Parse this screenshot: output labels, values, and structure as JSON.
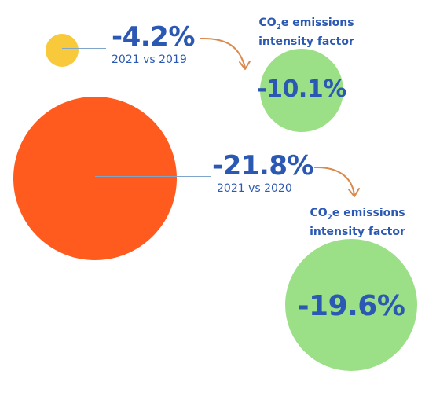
{
  "comparison_2019": {
    "change": "-4.2%",
    "label": "2021 vs 2019",
    "factor_title_prefix": "CO",
    "factor_title_sub": "2",
    "factor_title_line1_suffix": "e emissions",
    "factor_title_line2": "intensity factor",
    "factor_change": "-10.1%"
  },
  "comparison_2020": {
    "change": "-21.8%",
    "label": "2021 vs 2020",
    "factor_title_prefix": "CO",
    "factor_title_sub": "2",
    "factor_title_line1_suffix": "e emissions",
    "factor_title_line2": "intensity factor",
    "factor_change": "-19.6%"
  },
  "colors": {
    "small_circle": "#F8C93A",
    "large_circle": "#FF5B1F",
    "factor_circles": "#9BDF87",
    "text": "#2B58B3",
    "arrow": "#D98A4E"
  }
}
